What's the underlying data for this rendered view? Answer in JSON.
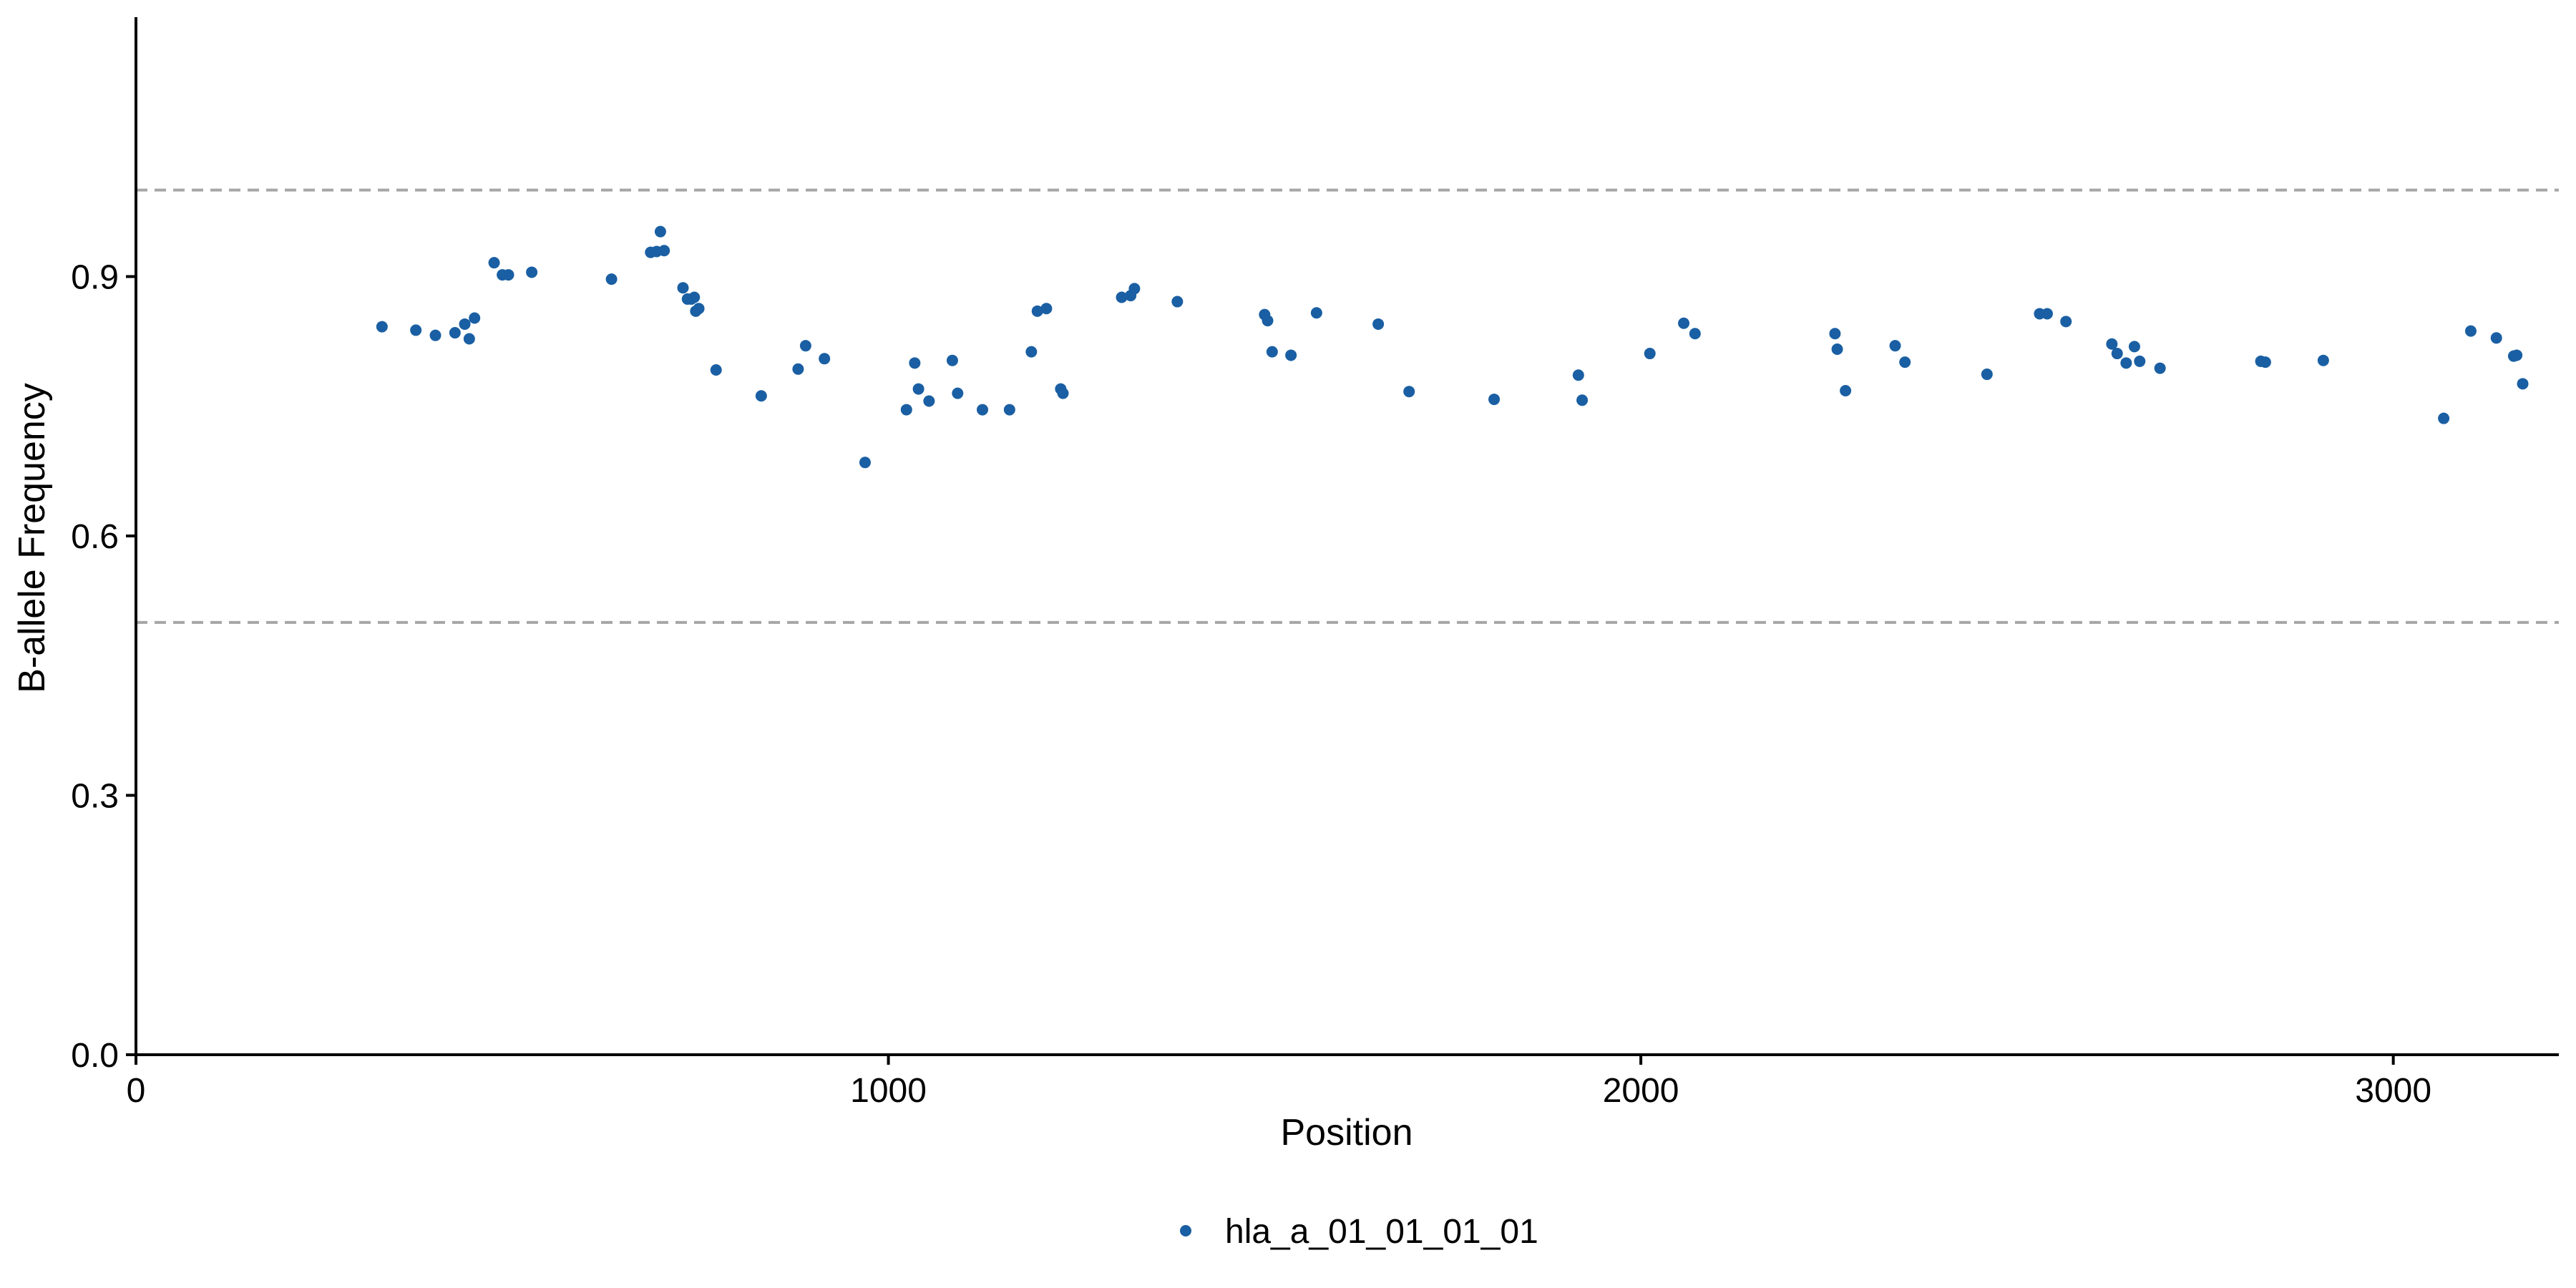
{
  "chart_data": {
    "type": "scatter",
    "title": "",
    "xlabel": "Position",
    "ylabel": "B-allele Frequency",
    "xlim": [
      0,
      3220
    ],
    "ylim": [
      0,
      1.2
    ],
    "x_ticks": [
      0,
      1000,
      2000,
      3000
    ],
    "x_tick_labels": [
      "0",
      "1000",
      "2000",
      "3000"
    ],
    "y_ticks": [
      0,
      0.3,
      0.6,
      0.9
    ],
    "y_tick_labels": [
      "0.0",
      "0.3",
      "0.6",
      "0.9"
    ],
    "reference_lines": [
      {
        "axis": "y",
        "value": 1.0,
        "style": "dashed"
      },
      {
        "axis": "y",
        "value": 0.5,
        "style": "dashed"
      }
    ],
    "grid": false,
    "legend_position": "bottom",
    "series": [
      {
        "name": "hla_a_01_01_01_01",
        "color": "#1a5fa3",
        "points": [
          [
            327,
            0.842
          ],
          [
            372,
            0.838
          ],
          [
            398,
            0.832
          ],
          [
            424,
            0.835
          ],
          [
            437,
            0.845
          ],
          [
            443,
            0.828
          ],
          [
            450,
            0.852
          ],
          [
            476,
            0.916
          ],
          [
            487,
            0.902
          ],
          [
            495,
            0.902
          ],
          [
            526,
            0.905
          ],
          [
            632,
            0.897
          ],
          [
            684,
            0.928
          ],
          [
            692,
            0.929
          ],
          [
            697,
            0.952
          ],
          [
            702,
            0.93
          ],
          [
            727,
            0.887
          ],
          [
            733,
            0.874
          ],
          [
            738,
            0.874
          ],
          [
            742,
            0.876
          ],
          [
            744,
            0.86
          ],
          [
            748,
            0.863
          ],
          [
            771,
            0.792
          ],
          [
            831,
            0.762
          ],
          [
            880,
            0.793
          ],
          [
            890,
            0.82
          ],
          [
            915,
            0.805
          ],
          [
            969,
            0.685
          ],
          [
            1024,
            0.746
          ],
          [
            1035,
            0.8
          ],
          [
            1040,
            0.77
          ],
          [
            1054,
            0.756
          ],
          [
            1085,
            0.803
          ],
          [
            1092,
            0.765
          ],
          [
            1125,
            0.746
          ],
          [
            1161,
            0.746
          ],
          [
            1190,
            0.813
          ],
          [
            1198,
            0.86
          ],
          [
            1210,
            0.863
          ],
          [
            1229,
            0.77
          ],
          [
            1232,
            0.765
          ],
          [
            1310,
            0.876
          ],
          [
            1322,
            0.878
          ],
          [
            1327,
            0.886
          ],
          [
            1384,
            0.871
          ],
          [
            1500,
            0.856
          ],
          [
            1504,
            0.849
          ],
          [
            1510,
            0.813
          ],
          [
            1535,
            0.809
          ],
          [
            1569,
            0.858
          ],
          [
            1651,
            0.845
          ],
          [
            1692,
            0.767
          ],
          [
            1805,
            0.758
          ],
          [
            1917,
            0.786
          ],
          [
            1922,
            0.757
          ],
          [
            2012,
            0.811
          ],
          [
            2057,
            0.846
          ],
          [
            2072,
            0.834
          ],
          [
            2258,
            0.834
          ],
          [
            2261,
            0.816
          ],
          [
            2272,
            0.768
          ],
          [
            2338,
            0.82
          ],
          [
            2351,
            0.801
          ],
          [
            2460,
            0.787
          ],
          [
            2530,
            0.857
          ],
          [
            2540,
            0.857
          ],
          [
            2565,
            0.848
          ],
          [
            2626,
            0.822
          ],
          [
            2633,
            0.811
          ],
          [
            2645,
            0.8
          ],
          [
            2656,
            0.819
          ],
          [
            2663,
            0.802
          ],
          [
            2690,
            0.794
          ],
          [
            2824,
            0.802
          ],
          [
            2830,
            0.801
          ],
          [
            2907,
            0.803
          ],
          [
            3067,
            0.736
          ],
          [
            3103,
            0.837
          ],
          [
            3137,
            0.829
          ],
          [
            3160,
            0.808
          ],
          [
            3164,
            0.809
          ],
          [
            3172,
            0.776
          ]
        ]
      }
    ]
  }
}
